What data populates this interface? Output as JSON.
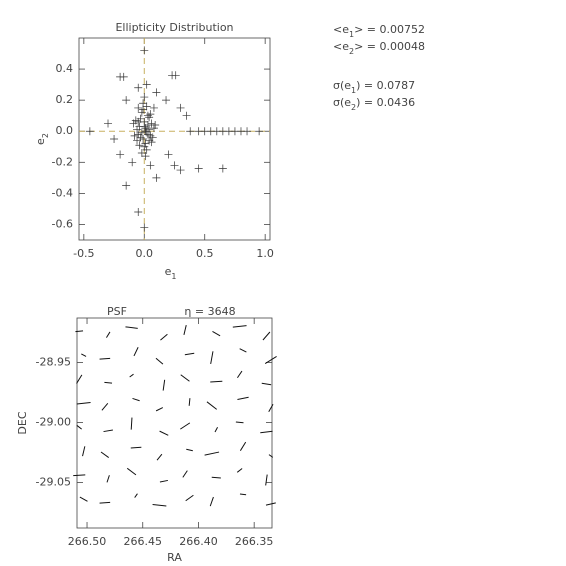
{
  "chart_data": [
    {
      "type": "scatter",
      "title": "Ellipticity Distribution",
      "xlabel": {
        "text": "e",
        "sub": "1"
      },
      "ylabel": {
        "text": "e",
        "sub": "2"
      },
      "xlim": [
        -0.54,
        1.04
      ],
      "ylim": [
        -0.7,
        0.6
      ],
      "xticks": [
        -0.5,
        {
          "value": 0,
          "label": "0.0"
        },
        0.5,
        {
          "value": 1,
          "label": "1.0"
        }
      ],
      "yticks": [
        -0.6,
        -0.4,
        -0.2,
        {
          "value": 0,
          "label": "0.0"
        },
        0.2,
        0.4
      ],
      "crosshair": {
        "x": 0,
        "y": 0,
        "color": "#c8b060"
      },
      "color": "#333333",
      "x": [
        0.01,
        -0.02,
        0.03,
        -0.04,
        0.05,
        0.0,
        -0.01,
        0.02,
        -0.03,
        0.04,
        -0.05,
        0.06,
        0.01,
        -0.06,
        0.03,
        -0.02,
        0.07,
        -0.07,
        0.0,
        0.02,
        -0.01,
        0.04,
        -0.04,
        0.08,
        -0.08,
        0.01,
        0.03,
        -0.03,
        0.05,
        -0.05,
        0.02,
        -0.02,
        0.06,
        -0.06,
        0.0,
        0.09,
        -0.09,
        0.01,
        -0.01,
        0.04,
        -0.45,
        0.0,
        -0.2,
        -0.17,
        0.23,
        0.26,
        -0.15,
        0.18,
        0.3,
        0.35,
        -0.3,
        -0.25,
        0.5,
        0.6,
        0.7,
        0.8,
        0.95,
        0.38,
        0.45,
        0.55,
        0.65,
        0.75,
        0.85,
        0.65,
        0.45,
        0.3,
        0.25,
        0.0,
        -0.05,
        -0.15,
        0.1,
        -0.1,
        0.05,
        0.2,
        -0.2,
        0.02,
        0.1,
        -0.05,
        0.0,
        -0.05,
        0.08
      ],
      "y": [
        0.02,
        -0.01,
        0.04,
        0.03,
        -0.03,
        0.06,
        -0.05,
        0.0,
        0.08,
        -0.06,
        -0.02,
        0.05,
        -0.08,
        0.01,
        0.1,
        0.12,
        -0.04,
        0.07,
        -0.1,
        -0.12,
        0.14,
        0.09,
        -0.09,
        0.02,
        -0.03,
        0.0,
        -0.02,
        -0.04,
        0.11,
        0.06,
        0.16,
        -0.14,
        -0.07,
        -0.06,
        0.03,
        0.04,
        0.05,
        -0.16,
        0.18,
        0.01,
        0.0,
        0.52,
        0.35,
        0.35,
        0.36,
        0.36,
        0.2,
        0.2,
        0.15,
        0.1,
        0.05,
        -0.05,
        0.0,
        0.0,
        0.0,
        0.0,
        0.0,
        0.0,
        0.0,
        0.0,
        0.0,
        0.0,
        0.0,
        -0.24,
        -0.24,
        -0.25,
        -0.22,
        -0.62,
        -0.52,
        -0.35,
        -0.3,
        -0.2,
        -0.22,
        -0.15,
        -0.15,
        0.3,
        0.25,
        0.28,
        0.22,
        0.15,
        0.15
      ]
    },
    {
      "type": "whisker",
      "title": "PSF",
      "subtitle": "η = 3648",
      "xlabel": "RA",
      "ylabel": "DEC",
      "xlim": [
        266.509,
        266.334
      ],
      "ylim": [
        -29.088,
        -28.913
      ],
      "xticks": [
        {
          "value": 266.5,
          "label": "266.50"
        },
        266.45,
        {
          "value": 266.4,
          "label": "266.40"
        },
        266.35
      ],
      "yticks": [
        -28.95,
        {
          "value": -29,
          "label": "-29.00"
        },
        -29.05
      ],
      "color": "#111111",
      "ra": [
        266.507,
        266.481,
        266.46,
        266.431,
        266.412,
        266.384,
        266.363,
        266.339,
        266.503,
        266.484,
        266.456,
        266.435,
        266.408,
        266.388,
        266.36,
        266.335,
        266.507,
        266.481,
        266.46,
        266.431,
        266.412,
        266.384,
        266.363,
        266.339,
        266.503,
        266.484,
        266.456,
        266.435,
        266.408,
        266.388,
        266.36,
        266.335,
        266.507,
        266.481,
        266.46,
        266.431,
        266.412,
        266.384,
        266.363,
        266.339,
        266.503,
        266.484,
        266.456,
        266.435,
        266.408,
        266.388,
        266.36,
        266.335,
        266.507,
        266.481,
        266.46,
        266.431,
        266.412,
        266.384,
        266.363,
        266.339,
        266.503,
        266.484,
        266.456,
        266.435,
        266.408,
        266.388,
        266.36,
        266.335
      ],
      "dec": [
        -28.924,
        -28.927,
        -28.921,
        -28.929,
        -28.923,
        -28.926,
        -28.92,
        -28.928,
        -28.944,
        -28.947,
        -28.941,
        -28.949,
        -28.943,
        -28.946,
        -28.94,
        -28.948,
        -28.964,
        -28.967,
        -28.961,
        -28.969,
        -28.963,
        -28.966,
        -28.96,
        -28.968,
        -28.984,
        -28.987,
        -28.981,
        -28.989,
        -28.983,
        -28.986,
        -28.98,
        -28.988,
        -29.004,
        -29.007,
        -29.001,
        -29.009,
        -29.003,
        -29.006,
        -29.0,
        -29.008,
        -29.024,
        -29.027,
        -29.021,
        -29.029,
        -29.023,
        -29.026,
        -29.02,
        -29.028,
        -29.044,
        -29.047,
        -29.041,
        -29.049,
        -29.043,
        -29.046,
        -29.04,
        -29.048,
        -29.064,
        -29.067,
        -29.061,
        -29.069,
        -29.063,
        -29.066,
        -29.06,
        -29.068
      ],
      "e1": [
        0.05,
        -0.02,
        0.08,
        0.01,
        -0.06,
        0.03,
        0.09,
        -0.01,
        0.02,
        0.07,
        -0.04,
        0.01,
        0.06,
        -0.08,
        0.03,
        0.04,
        -0.03,
        0.05,
        0.01,
        -0.07,
        0.02,
        0.08,
        -0.02,
        0.06,
        0.09,
        -0.01,
        0.04,
        0.03,
        -0.05,
        0.02,
        0.07,
        -0.03,
        0.01,
        0.06,
        -0.08,
        0.04,
        0.03,
        -0.02,
        0.05,
        0.08,
        -0.06,
        0.02,
        0.07,
        -0.01,
        0.04,
        0.09,
        -0.03,
        0.01,
        0.08,
        -0.04,
        0.02,
        0.05,
        -0.02,
        0.06,
        0.01,
        -0.07,
        0.03,
        0.07,
        -0.01,
        0.09,
        0.02,
        -0.05,
        0.04,
        0.06
      ],
      "e2": [
        0.01,
        0.04,
        -0.02,
        0.06,
        0.03,
        -0.05,
        0.02,
        0.07,
        -0.03,
        0.01,
        0.05,
        -0.06,
        0.02,
        0.03,
        -0.04,
        0.08,
        0.06,
        -0.01,
        0.03,
        0.02,
        -0.07,
        0.01,
        0.05,
        -0.02,
        0.02,
        0.06,
        -0.03,
        0.04,
        0.01,
        -0.08,
        0.03,
        0.05,
        -0.04,
        0.02,
        0.01,
        -0.05,
        0.07,
        0.03,
        -0.01,
        0.02,
        0.03,
        -0.06,
        0.01,
        0.05,
        -0.02,
        0.04,
        0.06,
        -0.03,
        0.01,
        0.03,
        -0.07,
        0.02,
        0.05,
        -0.01,
        0.04,
        0.02,
        -0.05,
        0.01,
        0.03,
        -0.02,
        0.06,
        0.04,
        -0.01,
        0.03
      ]
    }
  ],
  "stats": [
    {
      "prefix": "<e",
      "sub": "1",
      "suffix": "> = 0.00752"
    },
    {
      "prefix": "<e",
      "sub": "2",
      "suffix": "> = 0.00048"
    },
    {
      "prefix": "σ(e",
      "sub": "1",
      "suffix": ") = 0.0787"
    },
    {
      "prefix": "σ(e",
      "sub": "2",
      "suffix": ") = 0.0436"
    }
  ]
}
